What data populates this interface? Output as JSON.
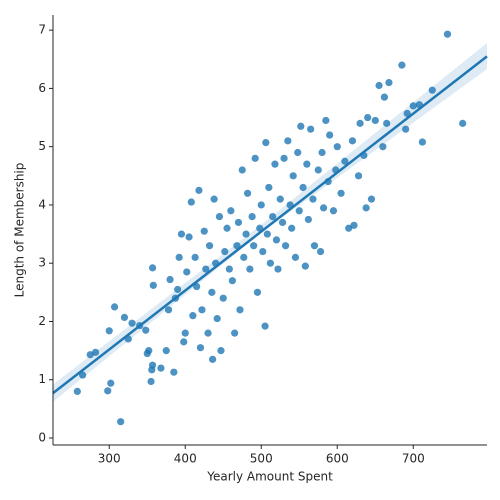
{
  "chart_data": {
    "type": "scatter",
    "xlabel": "Yearly Amount Spent",
    "ylabel": "Length of Membership",
    "color": "#1f77b4",
    "x": [
      258,
      265,
      275,
      282,
      298,
      300,
      302,
      307,
      315,
      320,
      325,
      330,
      340,
      348,
      350,
      352,
      355,
      356,
      357,
      357,
      358,
      368,
      375,
      378,
      380,
      385,
      387,
      390,
      392,
      395,
      398,
      400,
      402,
      405,
      408,
      410,
      413,
      415,
      418,
      420,
      422,
      425,
      427,
      430,
      432,
      435,
      436,
      438,
      440,
      442,
      445,
      447,
      450,
      452,
      455,
      458,
      460,
      462,
      465,
      468,
      470,
      472,
      475,
      477,
      480,
      482,
      485,
      488,
      490,
      492,
      495,
      498,
      500,
      502,
      505,
      506,
      508,
      510,
      512,
      515,
      518,
      520,
      522,
      525,
      528,
      530,
      532,
      535,
      538,
      540,
      542,
      545,
      548,
      550,
      552,
      555,
      558,
      560,
      562,
      565,
      568,
      570,
      575,
      578,
      580,
      582,
      585,
      588,
      590,
      595,
      598,
      600,
      605,
      610,
      615,
      620,
      622,
      628,
      630,
      635,
      638,
      640,
      645,
      650,
      655,
      660,
      662,
      665,
      668,
      685,
      690,
      692,
      700,
      708,
      712,
      725,
      745,
      765
    ],
    "y": [
      0.8,
      1.08,
      1.43,
      1.47,
      0.81,
      1.84,
      0.94,
      2.25,
      0.28,
      2.07,
      1.7,
      1.97,
      1.93,
      1.85,
      1.45,
      1.5,
      0.97,
      1.17,
      1.25,
      2.92,
      2.62,
      1.2,
      1.5,
      2.2,
      2.72,
      1.13,
      2.4,
      2.55,
      3.1,
      3.5,
      1.65,
      1.8,
      2.85,
      3.45,
      4.05,
      2.1,
      3.1,
      2.6,
      4.25,
      1.55,
      2.2,
      3.55,
      2.9,
      1.8,
      3.3,
      2.5,
      1.35,
      4.1,
      3.0,
      2.05,
      3.8,
      1.5,
      2.4,
      3.2,
      3.6,
      2.9,
      3.9,
      2.7,
      1.8,
      3.3,
      3.7,
      2.2,
      4.6,
      3.1,
      3.5,
      4.2,
      2.9,
      3.8,
      3.3,
      4.8,
      2.5,
      3.6,
      4.0,
      3.2,
      1.92,
      5.07,
      3.5,
      4.3,
      3.0,
      3.8,
      4.7,
      3.4,
      2.9,
      4.1,
      3.7,
      4.8,
      3.3,
      5.1,
      4.0,
      3.6,
      4.5,
      3.1,
      4.9,
      3.9,
      5.35,
      4.3,
      2.95,
      4.7,
      3.75,
      5.3,
      4.1,
      3.3,
      4.6,
      3.2,
      4.9,
      3.95,
      5.45,
      4.4,
      5.2,
      3.9,
      4.6,
      5.0,
      4.2,
      4.75,
      3.6,
      5.1,
      3.65,
      4.5,
      5.4,
      4.85,
      3.95,
      5.5,
      4.1,
      5.45,
      6.05,
      5.0,
      5.85,
      5.4,
      6.1,
      6.4,
      5.3,
      5.57,
      5.7,
      5.72,
      5.08,
      5.97,
      6.93,
      5.4
    ],
    "fit": {
      "x": [
        226,
        797
      ],
      "y": [
        0.77,
        6.55
      ]
    },
    "ci": {
      "x": [
        226,
        500,
        797
      ],
      "lower": [
        0.62,
        3.52,
        6.33
      ],
      "upper": [
        0.92,
        3.66,
        6.78
      ]
    },
    "xlim": [
      226,
      797
    ],
    "ylim": [
      -0.12,
      7.26
    ],
    "xticks": [
      300,
      400,
      500,
      600,
      700
    ],
    "yticks": [
      0,
      1,
      2,
      3,
      4,
      5,
      6,
      7
    ]
  }
}
